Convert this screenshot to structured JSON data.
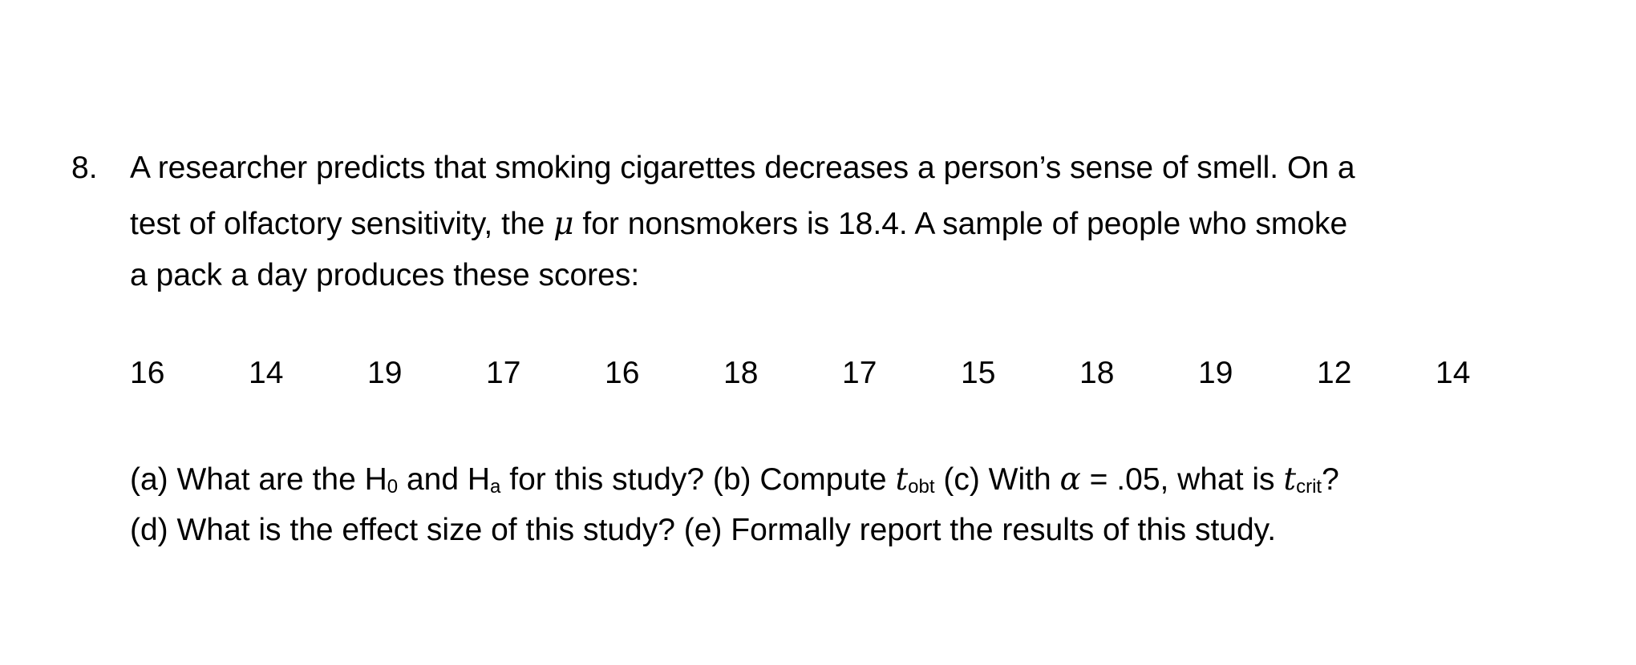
{
  "question": {
    "number": "8.",
    "lines": [
      "A researcher predicts that smoking cigarettes decreases a person’s sense of smell. On a",
      "a pack a day produces these scores:"
    ],
    "line2_before": "test of olfactory sensitivity, the ",
    "mu": "μ",
    "line2_after": " for nonsmokers is 18.4. A sample of people who smoke"
  },
  "scores": [
    16,
    14,
    19,
    17,
    16,
    18,
    17,
    15,
    18,
    19,
    12,
    14
  ],
  "prompts": {
    "a_text": "(a) What are the H",
    "h0_sub": "0",
    "and": " and H",
    "ha_sub": "a",
    "a_rest": " for this study? (b) Compute ",
    "t": "t",
    "obt_sub": "obt",
    "c_text": " (c) With ",
    "alpha": "α",
    "alpha_rest": " = .05, what is ",
    "crit_sub": "crit",
    "q": "?",
    "line2": "(d) What is the effect size of this study? (e) Formally report the results of this study."
  }
}
